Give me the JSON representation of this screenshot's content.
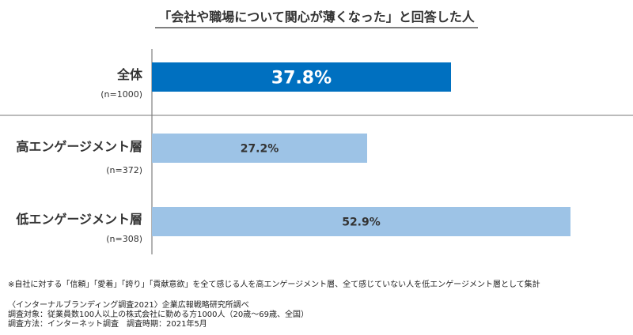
{
  "chart_data": {
    "type": "bar",
    "orientation": "horizontal",
    "title": "「会社や職場について関心が薄くなった」と回答した人",
    "categories": [
      "全体",
      "高エンゲージメント層",
      "低エンゲージメント層"
    ],
    "sample_sizes": [
      "(n=1000)",
      "(n=372)",
      "(n=308)"
    ],
    "values": [
      37.8,
      27.2,
      52.9
    ],
    "value_labels": [
      "37.8%",
      "27.2%",
      "52.9%"
    ],
    "unit": "%",
    "xlim": [
      0,
      100
    ],
    "grid": false,
    "colors": [
      "#0070c0",
      "#9dc3e6",
      "#9dc3e6"
    ]
  },
  "notes": {
    "footnote": "※自社に対する「信頼」「愛着」「誇り」「貢献意欲」を全て感じる人を高エンゲージメント層、全て感じていない人を低エンゲージメント層として集計",
    "source": "〈インターナルブランディング調査2021〉企業広報戦略研究所調べ",
    "target": "調査対象：従業員数100人以上の株式会社に勤める方1000人（20歳～69歳、全国）",
    "method": "調査方法：インターネット調査　調査時期：2021年5月"
  }
}
